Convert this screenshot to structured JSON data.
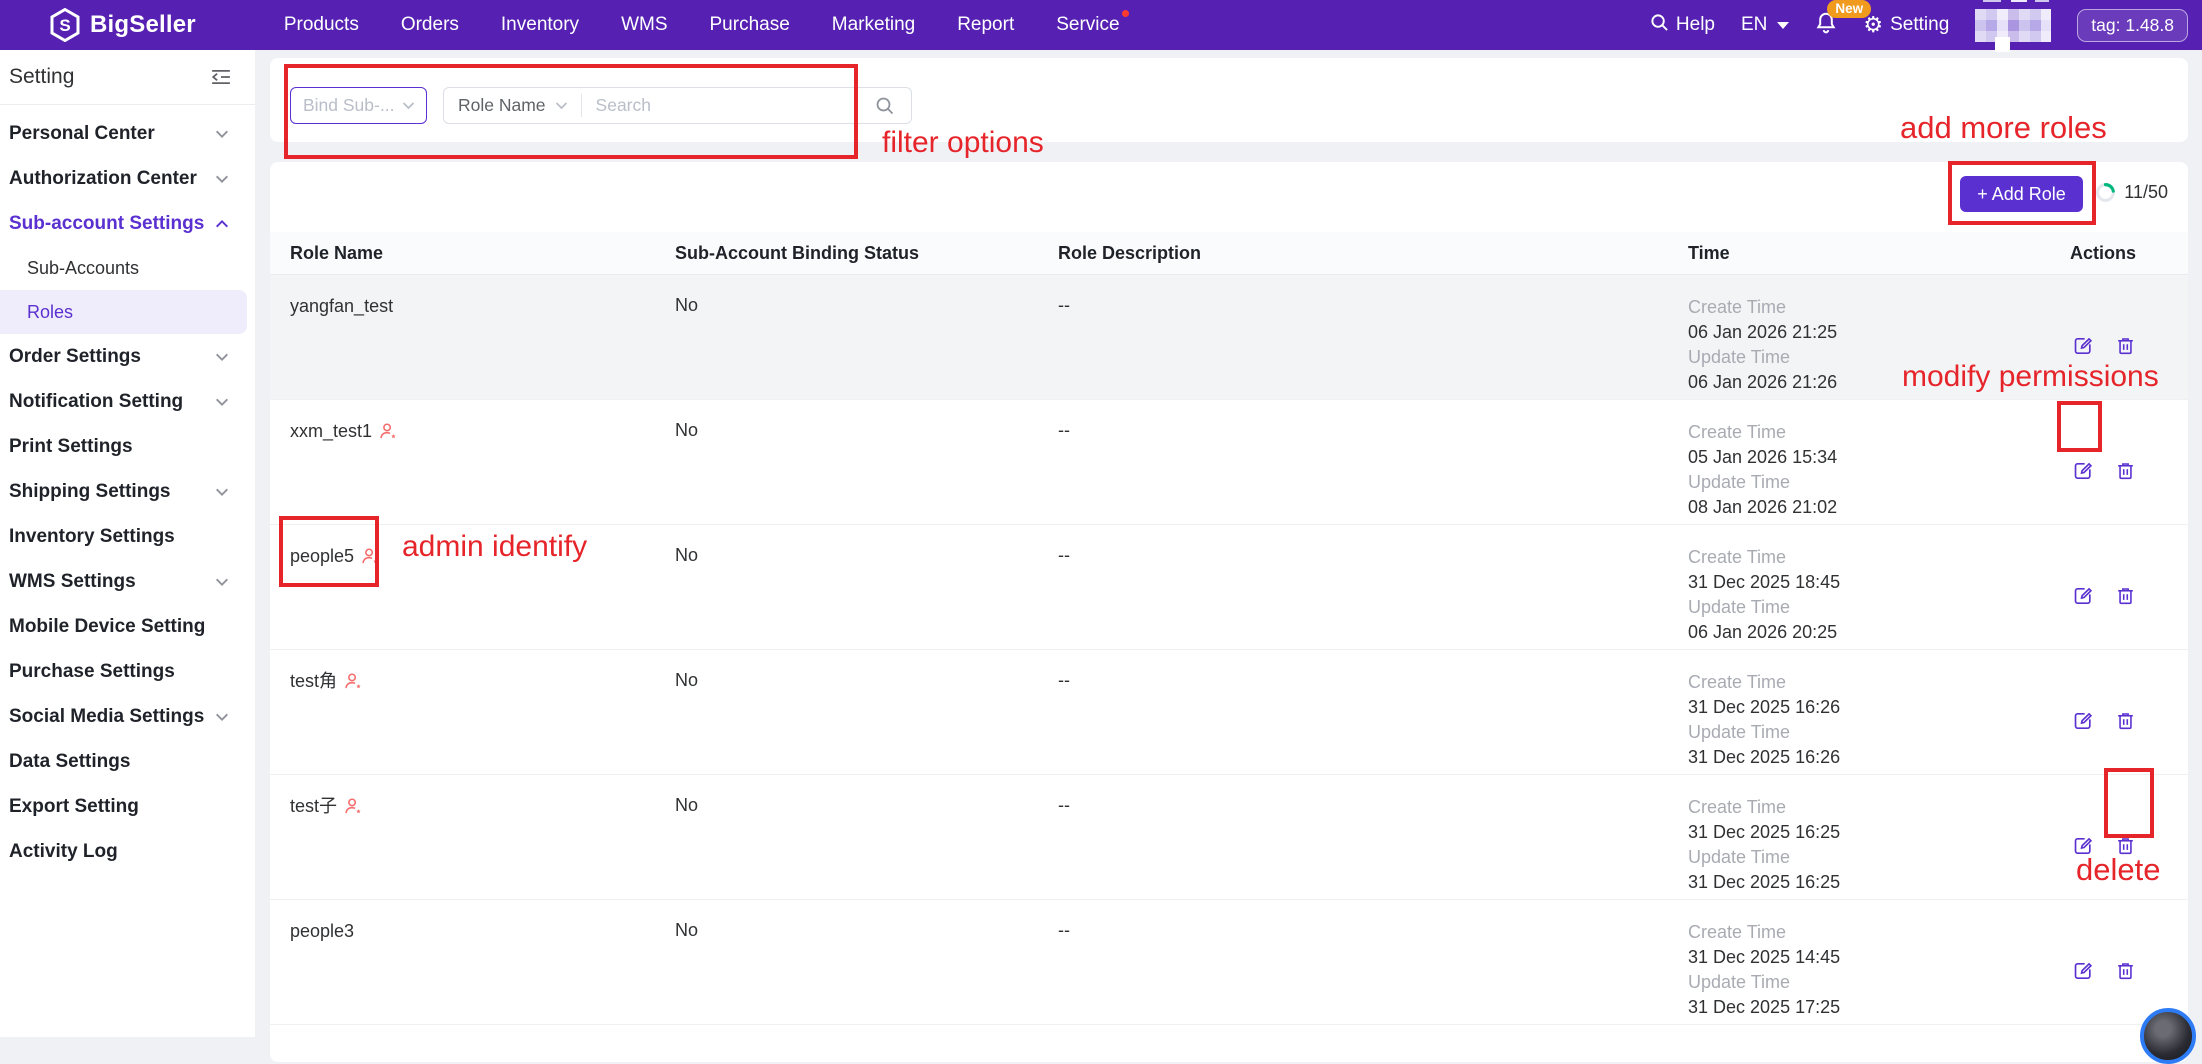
{
  "navbar": {
    "brand": "BigSeller",
    "items": [
      {
        "label": "Products"
      },
      {
        "label": "Orders"
      },
      {
        "label": "Inventory"
      },
      {
        "label": "WMS"
      },
      {
        "label": "Purchase"
      },
      {
        "label": "Marketing"
      },
      {
        "label": "Report"
      },
      {
        "label": "Service",
        "badge_dot": true
      }
    ],
    "help_label": "Help",
    "lang": "EN",
    "new_badge": "New",
    "setting_label": "Setting",
    "version_tag": "tag: 1.48.8"
  },
  "sidebar": {
    "title": "Setting",
    "items": [
      {
        "label": "Personal Center",
        "chevron": "down"
      },
      {
        "label": "Authorization Center",
        "chevron": "down"
      },
      {
        "label": "Sub-account Settings",
        "chevron": "up",
        "active": true,
        "children": [
          {
            "label": "Sub-Accounts"
          },
          {
            "label": "Roles",
            "selected": true
          }
        ]
      },
      {
        "label": "Order Settings",
        "chevron": "down"
      },
      {
        "label": "Notification Setting",
        "chevron": "down"
      },
      {
        "label": "Print Settings"
      },
      {
        "label": "Shipping Settings",
        "chevron": "down"
      },
      {
        "label": "Inventory Settings"
      },
      {
        "label": "WMS Settings",
        "chevron": "down"
      },
      {
        "label": "Mobile Device Setting"
      },
      {
        "label": "Purchase Settings"
      },
      {
        "label": "Social Media Settings",
        "chevron": "down"
      },
      {
        "label": "Data Settings"
      },
      {
        "label": "Export Setting"
      },
      {
        "label": "Activity Log"
      }
    ]
  },
  "filters": {
    "bind_sub_placeholder": "Bind Sub-...",
    "role_name_label": "Role Name",
    "search_placeholder": "Search"
  },
  "toolbar": {
    "add_role_label": "+ Add Role",
    "quota": "11/50",
    "quota_percent": 22
  },
  "table": {
    "headers": [
      "Role Name",
      "Sub-Account Binding Status",
      "Role Description",
      "Time",
      "Actions"
    ],
    "time_labels": {
      "create": "Create Time",
      "update": "Update Time"
    },
    "rows": [
      {
        "name": "yangfan_test",
        "admin": false,
        "status": "No",
        "description": "--",
        "create_time": "06 Jan 2026 21:25",
        "update_time": "06 Jan 2026 21:26",
        "hover": true
      },
      {
        "name": "xxm_test1",
        "admin": true,
        "status": "No",
        "description": "--",
        "create_time": "05 Jan 2026 15:34",
        "update_time": "08 Jan 2026 21:02",
        "hover": false
      },
      {
        "name": "people5",
        "admin": true,
        "status": "No",
        "description": "--",
        "create_time": "31 Dec 2025 18:45",
        "update_time": "06 Jan 2026 20:25",
        "hover": false
      },
      {
        "name": "test角",
        "admin": true,
        "status": "No",
        "description": "--",
        "create_time": "31 Dec 2025 16:26",
        "update_time": "31 Dec 2025 16:26",
        "hover": false
      },
      {
        "name": "test子",
        "admin": true,
        "status": "No",
        "description": "--",
        "create_time": "31 Dec 2025 16:25",
        "update_time": "31 Dec 2025 16:25",
        "hover": false
      },
      {
        "name": "people3",
        "admin": false,
        "status": "No",
        "description": "--",
        "create_time": "31 Dec 2025 14:45",
        "update_time": "31 Dec 2025 17:25",
        "hover": false
      }
    ]
  },
  "annotations": {
    "filter_options": "filter options",
    "add_more_roles": "add more roles",
    "modify_permissions": "modify permissions",
    "admin_identify": "admin identify",
    "delete": "delete"
  },
  "colors": {
    "nav_purple": "#5621b2",
    "accent": "#5a30d0",
    "annotation_red": "#e6252b",
    "quota_green": "#00b77e",
    "admin_icon_red": "#f56c6c"
  }
}
